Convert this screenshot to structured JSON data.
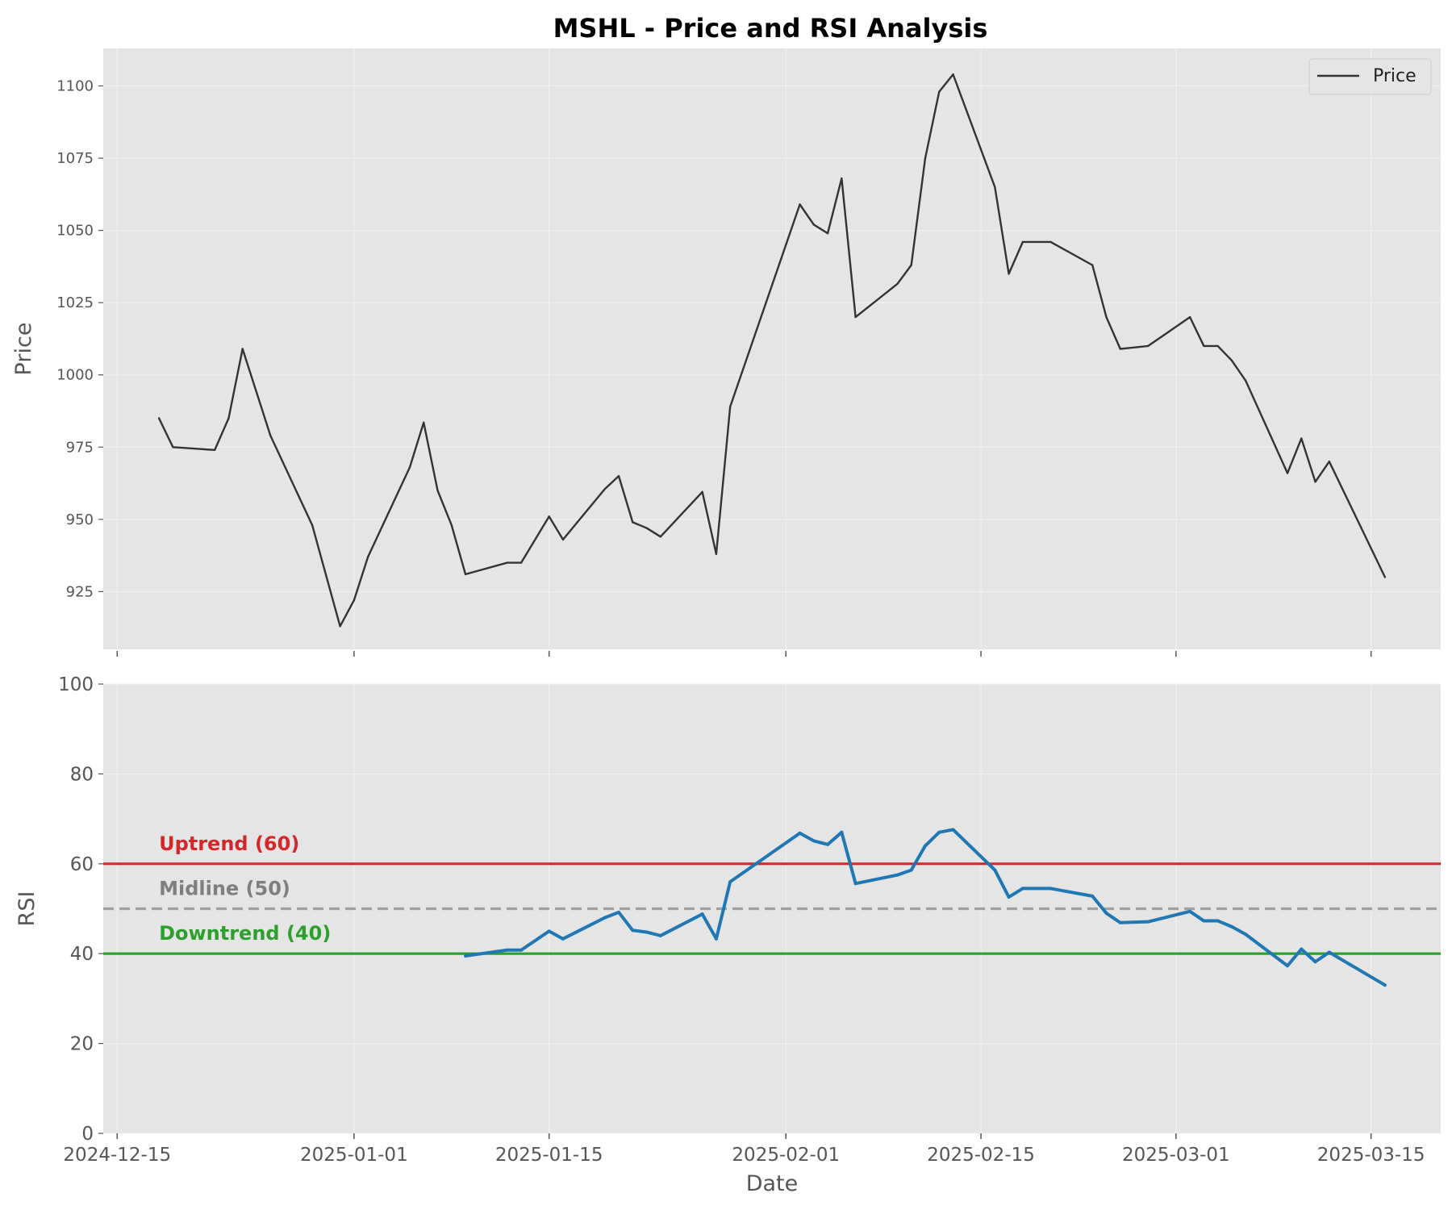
{
  "title": "MSHL - Price and RSI Analysis",
  "colors": {
    "panel_bg": "#e5e5e5",
    "grid": "#f2f2f2",
    "price_line": "#333333",
    "rsi_line": "#1f77b4",
    "uptrend": "#d62728",
    "midline": "#a0a0a0",
    "midline_text": "#7f7f7f",
    "downtrend": "#2ca02c"
  },
  "chart_data": [
    {
      "type": "line",
      "panel": "price",
      "ylabel": "Price",
      "ylim": [
        905,
        1113
      ],
      "yticks": [
        925,
        950,
        975,
        1000,
        1025,
        1050,
        1075,
        1100
      ],
      "xlim": [
        "2024-12-14",
        "2025-03-20"
      ],
      "grid": true,
      "legend": {
        "placement": "top-right",
        "entries": [
          "Price"
        ]
      },
      "series": [
        {
          "name": "Price",
          "points": [
            [
              "2024-12-18",
              985
            ],
            [
              "2024-12-19",
              975
            ],
            [
              "2024-12-22",
              974
            ],
            [
              "2024-12-23",
              985
            ],
            [
              "2024-12-24",
              1009
            ],
            [
              "2024-12-26",
              979
            ],
            [
              "2024-12-29",
              948
            ],
            [
              "2024-12-31",
              913
            ],
            [
              "2025-01-01",
              922
            ],
            [
              "2025-01-02",
              937
            ],
            [
              "2025-01-05",
              968
            ],
            [
              "2025-01-06",
              983.5
            ],
            [
              "2025-01-07",
              960
            ],
            [
              "2025-01-08",
              948
            ],
            [
              "2025-01-09",
              931
            ],
            [
              "2025-01-12",
              935
            ],
            [
              "2025-01-13",
              935
            ],
            [
              "2025-01-15",
              951
            ],
            [
              "2025-01-16",
              943
            ],
            [
              "2025-01-19",
              960.5
            ],
            [
              "2025-01-20",
              965
            ],
            [
              "2025-01-21",
              949
            ],
            [
              "2025-01-22",
              947
            ],
            [
              "2025-01-23",
              944
            ],
            [
              "2025-01-26",
              959.5
            ],
            [
              "2025-01-27",
              938
            ],
            [
              "2025-01-28",
              989
            ],
            [
              "2025-02-02",
              1059
            ],
            [
              "2025-02-03",
              1052
            ],
            [
              "2025-02-04",
              1049
            ],
            [
              "2025-02-05",
              1068
            ],
            [
              "2025-02-06",
              1020
            ],
            [
              "2025-02-09",
              1031.5
            ],
            [
              "2025-02-10",
              1038
            ],
            [
              "2025-02-11",
              1075
            ],
            [
              "2025-02-12",
              1098
            ],
            [
              "2025-02-13",
              1104
            ],
            [
              "2025-02-16",
              1065
            ],
            [
              "2025-02-17",
              1035
            ],
            [
              "2025-02-18",
              1046
            ],
            [
              "2025-02-20",
              1046
            ],
            [
              "2025-02-23",
              1038
            ],
            [
              "2025-02-24",
              1020
            ],
            [
              "2025-02-25",
              1009
            ],
            [
              "2025-02-27",
              1010
            ],
            [
              "2025-03-02",
              1020
            ],
            [
              "2025-03-03",
              1010
            ],
            [
              "2025-03-04",
              1010
            ],
            [
              "2025-03-05",
              1005
            ],
            [
              "2025-03-06",
              998
            ],
            [
              "2025-03-09",
              966
            ],
            [
              "2025-03-10",
              978
            ],
            [
              "2025-03-11",
              963
            ],
            [
              "2025-03-12",
              970
            ],
            [
              "2025-03-16",
              930
            ]
          ]
        }
      ]
    },
    {
      "type": "line",
      "panel": "rsi",
      "xlabel": "Date",
      "ylabel": "RSI",
      "ylim": [
        0,
        100
      ],
      "yticks": [
        0,
        20,
        40,
        60,
        80,
        100
      ],
      "xlim": [
        "2024-12-14",
        "2025-03-20"
      ],
      "xticks": [
        "2024-12-15",
        "2025-01-01",
        "2025-01-15",
        "2025-02-01",
        "2025-02-15",
        "2025-03-01",
        "2025-03-15"
      ],
      "grid": true,
      "reference_lines": [
        {
          "label": "Uptrend (60)",
          "value": 60,
          "style": "solid",
          "color": "#d62728"
        },
        {
          "label": "Midline (50)",
          "value": 50,
          "style": "dashed",
          "color": "#a0a0a0",
          "text_color": "#7f7f7f"
        },
        {
          "label": "Downtrend (40)",
          "value": 40,
          "style": "solid",
          "color": "#2ca02c"
        }
      ],
      "series": [
        {
          "points": [
            [
              "2025-01-09",
              39.5
            ],
            [
              "2025-01-12",
              40.8
            ],
            [
              "2025-01-13",
              40.8
            ],
            [
              "2025-01-15",
              45
            ],
            [
              "2025-01-16",
              43.3
            ],
            [
              "2025-01-19",
              48
            ],
            [
              "2025-01-20",
              49.2
            ],
            [
              "2025-01-21",
              45.2
            ],
            [
              "2025-01-22",
              44.8
            ],
            [
              "2025-01-23",
              44
            ],
            [
              "2025-01-26",
              48.8
            ],
            [
              "2025-01-27",
              43.3
            ],
            [
              "2025-01-28",
              56
            ],
            [
              "2025-02-02",
              66.8
            ],
            [
              "2025-02-03",
              65.1
            ],
            [
              "2025-02-04",
              64.3
            ],
            [
              "2025-02-05",
              67
            ],
            [
              "2025-02-06",
              55.6
            ],
            [
              "2025-02-09",
              57.5
            ],
            [
              "2025-02-10",
              58.6
            ],
            [
              "2025-02-11",
              64
            ],
            [
              "2025-02-12",
              67
            ],
            [
              "2025-02-13",
              67.6
            ],
            [
              "2025-02-16",
              58.6
            ],
            [
              "2025-02-17",
              52.6
            ],
            [
              "2025-02-18",
              54.5
            ],
            [
              "2025-02-20",
              54.5
            ],
            [
              "2025-02-23",
              52.8
            ],
            [
              "2025-02-24",
              49
            ],
            [
              "2025-02-25",
              46.9
            ],
            [
              "2025-02-27",
              47.1
            ],
            [
              "2025-03-02",
              49.4
            ],
            [
              "2025-03-03",
              47.3
            ],
            [
              "2025-03-04",
              47.3
            ],
            [
              "2025-03-05",
              46
            ],
            [
              "2025-03-06",
              44.3
            ],
            [
              "2025-03-09",
              37.3
            ],
            [
              "2025-03-10",
              41
            ],
            [
              "2025-03-11",
              38.2
            ],
            [
              "2025-03-12",
              40.3
            ],
            [
              "2025-03-16",
              33
            ]
          ]
        }
      ]
    }
  ]
}
